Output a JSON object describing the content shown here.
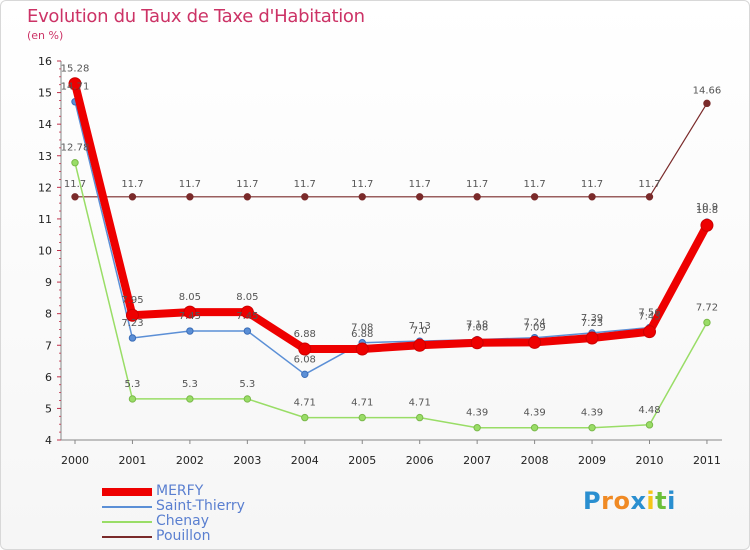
{
  "header": {
    "title": "Evolution du Taux de Taxe d'Habitation",
    "subtitle": "(en %)"
  },
  "logo": {
    "letters": [
      "P",
      "r",
      "o",
      "x",
      "i",
      "t",
      "i"
    ],
    "colors": [
      "#2a8fd0",
      "#f08a24",
      "#f08a24",
      "#2a8fd0",
      "#f5c518",
      "#6cbf3a",
      "#2a8fd0"
    ]
  },
  "chart_data": {
    "type": "line",
    "title": "Evolution du Taux de Taxe d'Habitation",
    "ylabel": "(en %)",
    "xlabel": "",
    "ylim": [
      4,
      16
    ],
    "yticks": [
      4,
      5,
      6,
      7,
      8,
      9,
      10,
      11,
      12,
      13,
      14,
      15,
      16
    ],
    "categories": [
      "2000",
      "2001",
      "2002",
      "2003",
      "2004",
      "2005",
      "2006",
      "2007",
      "2008",
      "2009",
      "2010",
      "2011"
    ],
    "series": [
      {
        "name": "Pouillon",
        "color": "#7a2a2a",
        "values": [
          11.7,
          11.7,
          11.7,
          11.7,
          11.7,
          11.7,
          11.7,
          11.7,
          11.7,
          11.7,
          11.7,
          14.66
        ],
        "labels": [
          "11.7",
          "11.7",
          "11.7",
          "11.7",
          "11.7",
          "11.7",
          "11.7",
          "11.7",
          "11.7",
          "11.7",
          "11.7",
          "14.66"
        ]
      },
      {
        "name": "Chenay",
        "color": "#99dd66",
        "values": [
          12.78,
          5.3,
          5.3,
          5.3,
          4.71,
          4.71,
          4.71,
          4.39,
          4.39,
          4.39,
          4.48,
          7.72
        ],
        "labels": [
          "12.78",
          "5.3",
          "5.3",
          "5.3",
          "4.71",
          "4.71",
          "4.71",
          "4.39",
          "4.39",
          "4.39",
          "4.48",
          "7.72"
        ]
      },
      {
        "name": "Saint-Thierry",
        "color": "#5b8fd6",
        "values": [
          14.71,
          7.23,
          7.45,
          7.45,
          6.08,
          7.08,
          7.13,
          7.18,
          7.24,
          7.39,
          7.56,
          10.9
        ],
        "labels": [
          "14.71",
          "7.23",
          "7.45",
          "7.45",
          "6.08",
          "7.08",
          "7.13",
          "7.18",
          "7.24",
          "7.39",
          "7.56",
          "10.9"
        ]
      },
      {
        "name": "MERFY",
        "color": "#ee0000",
        "values": [
          15.28,
          7.95,
          8.05,
          8.05,
          6.88,
          6.88,
          7.0,
          7.08,
          7.09,
          7.23,
          7.43,
          10.8
        ],
        "labels": [
          "15.28",
          "7.95",
          "8.05",
          "8.05",
          "6.88",
          "6.88",
          "7.0",
          "7.08",
          "7.09",
          "7.23",
          "7.43",
          "10.8"
        ]
      }
    ],
    "legend": [
      {
        "name": "MERFY",
        "color": "#ee0000"
      },
      {
        "name": "Saint-Thierry",
        "color": "#5b8fd6"
      },
      {
        "name": "Chenay",
        "color": "#99dd66"
      },
      {
        "name": "Pouillon",
        "color": "#7a2a2a"
      }
    ],
    "legend_position": "bottom-left",
    "grid": false
  }
}
